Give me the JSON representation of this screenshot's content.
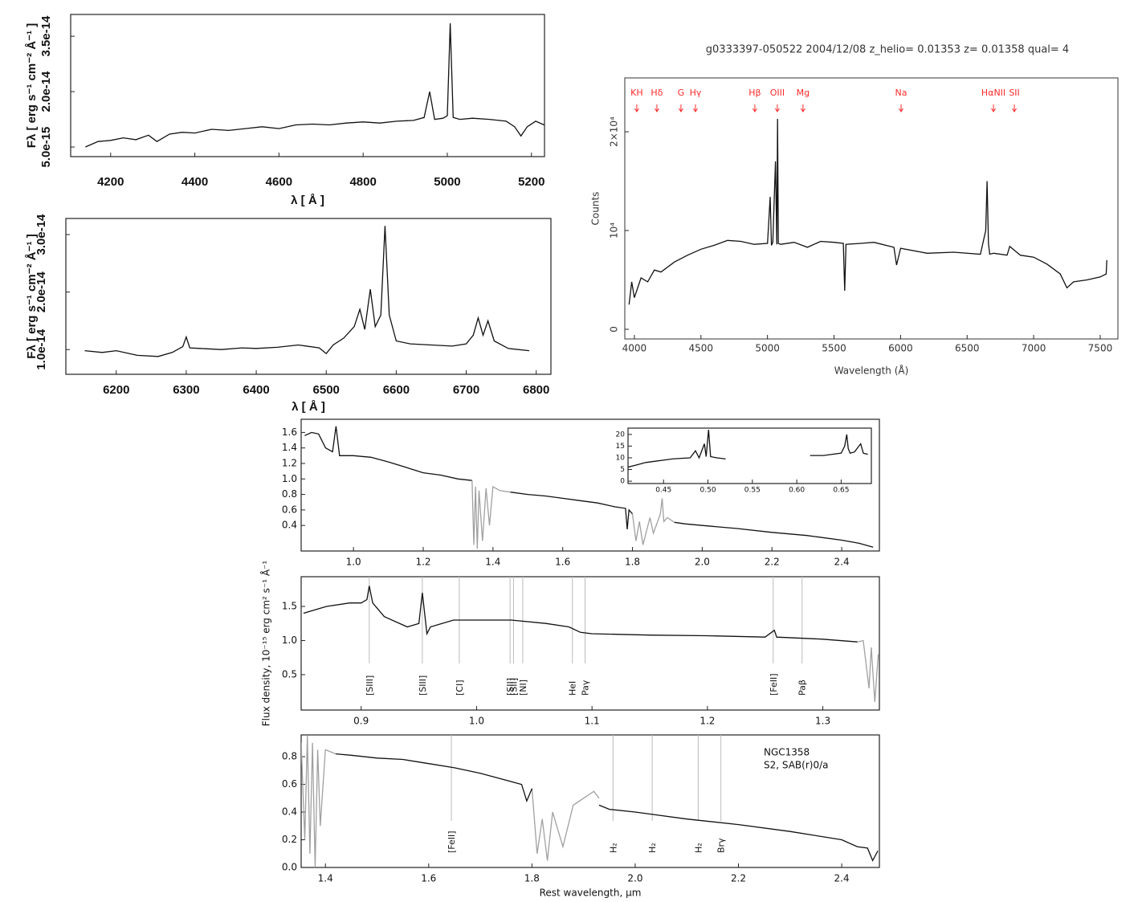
{
  "chart_data": [
    {
      "type": "line",
      "xlabel": "λ [ Å ]",
      "ylabel": "Fλ [ erg s⁻¹ cm⁻² Å⁻¹ ]",
      "xlim": [
        4105,
        5231
      ],
      "ylim": [
        2.4e-15,
        4.09e-14
      ],
      "xticks": [
        4200,
        4400,
        4600,
        4800,
        5000,
        5200
      ],
      "yticks": [
        {
          "value": 5e-15,
          "label": "5.0e-15"
        },
        {
          "value": 2e-14,
          "label": "2.0e-14"
        },
        {
          "value": 3.5e-14,
          "label": "3.5e-14"
        }
      ],
      "series": [
        {
          "color": "#111111",
          "x": [
            4140,
            4170,
            4200,
            4230,
            4260,
            4290,
            4310,
            4340,
            4370,
            4400,
            4440,
            4480,
            4520,
            4560,
            4600,
            4640,
            4680,
            4720,
            4760,
            4800,
            4840,
            4880,
            4920,
            4945,
            4958,
            4970,
            4990,
            5000,
            5007,
            5014,
            5030,
            5060,
            5100,
            5140,
            5160,
            5175,
            5190,
            5210,
            5230
          ],
          "values": [
            5e-15,
            6.5e-15,
            6.8e-15,
            7.5e-15,
            7e-15,
            8.2e-15,
            6.5e-15,
            8.5e-15,
            9e-15,
            8.8e-15,
            9.8e-15,
            9.5e-15,
            1e-14,
            1.05e-14,
            1e-14,
            1.1e-14,
            1.12e-14,
            1.1e-14,
            1.15e-14,
            1.18e-14,
            1.15e-14,
            1.2e-14,
            1.22e-14,
            1.3e-14,
            2e-14,
            1.25e-14,
            1.28e-14,
            1.35e-14,
            3.85e-14,
            1.3e-14,
            1.25e-14,
            1.28e-14,
            1.25e-14,
            1.2e-14,
            1.05e-14,
            8e-15,
            1.05e-14,
            1.2e-14,
            1.1e-14
          ]
        }
      ]
    },
    {
      "type": "line",
      "xlabel": "λ [ Å ]",
      "ylabel": "Fλ [ erg s⁻¹ cm⁻² Å⁻¹ ]",
      "xlim": [
        6128,
        6821
      ],
      "ylim": [
        5.7e-15,
        3.28e-14
      ],
      "xticks": [
        6200,
        6300,
        6400,
        6500,
        6600,
        6700,
        6800
      ],
      "yticks": [
        {
          "value": 1e-14,
          "label": "1.0e-14"
        },
        {
          "value": 2e-14,
          "label": "2.0e-14"
        },
        {
          "value": 3e-14,
          "label": "3.0e-14"
        }
      ],
      "series": [
        {
          "color": "#111111",
          "x": [
            6155,
            6180,
            6200,
            6230,
            6260,
            6280,
            6295,
            6300,
            6305,
            6320,
            6350,
            6380,
            6400,
            6430,
            6460,
            6490,
            6500,
            6510,
            6525,
            6540,
            6548,
            6555,
            6563,
            6570,
            6578,
            6584,
            6590,
            6600,
            6620,
            6650,
            6680,
            6700,
            6710,
            6717,
            6724,
            6731,
            6740,
            6760,
            6790
          ],
          "values": [
            9.8e-15,
            9.5e-15,
            9.8e-15,
            9e-15,
            8.8e-15,
            9.5e-15,
            1.05e-14,
            1.22e-14,
            1.03e-14,
            1.02e-14,
            1e-14,
            1.03e-14,
            1.02e-14,
            1.04e-14,
            1.08e-14,
            1.03e-14,
            9.3e-15,
            1.08e-14,
            1.2e-14,
            1.4e-14,
            1.7e-14,
            1.35e-14,
            2.05e-14,
            1.4e-14,
            1.6e-14,
            3.15e-14,
            1.6e-14,
            1.15e-14,
            1.1e-14,
            1.08e-14,
            1.06e-14,
            1.1e-14,
            1.25e-14,
            1.55e-14,
            1.25e-14,
            1.5e-14,
            1.15e-14,
            1.02e-14,
            9.8e-15
          ]
        }
      ]
    },
    {
      "type": "line",
      "title": "g0333397-050522 2004/12/08 z_helio= 0.01353 z= 0.01358 qual= 4",
      "xlabel": "Wavelength (Å)",
      "ylabel": "Counts",
      "xlim": [
        3928,
        7633
      ],
      "ylim": [
        -980,
        25450
      ],
      "xticks": [
        4000,
        4500,
        5000,
        5500,
        6000,
        6500,
        7000,
        7500
      ],
      "yticks": [
        0,
        {
          "value": 10000,
          "label": "10⁴"
        },
        {
          "value": 20000,
          "label": "2×10⁴"
        }
      ],
      "features": [
        {
          "label": "KH",
          "x": 4018
        },
        {
          "label": "Hδ",
          "x": 4169
        },
        {
          "label": "G",
          "x": 4350
        },
        {
          "label": "Hγ",
          "x": 4459
        },
        {
          "label": "Hβ",
          "x": 4905
        },
        {
          "label": "OIII",
          "x": 5074
        },
        {
          "label": "Mg",
          "x": 5267
        },
        {
          "label": "Na",
          "x": 6004
        },
        {
          "label": "HαNII",
          "x": 6698
        },
        {
          "label": "SII",
          "x": 6855
        }
      ],
      "feature_color": "#ff2a2a",
      "series": [
        {
          "color": "#111111",
          "x": [
            3960,
            3980,
            4000,
            4050,
            4100,
            4150,
            4200,
            4300,
            4400,
            4500,
            4600,
            4700,
            4800,
            4900,
            5000,
            5020,
            5030,
            5040,
            5060,
            5070,
            5076,
            5082,
            5100,
            5200,
            5300,
            5400,
            5500,
            5570,
            5580,
            5590,
            5700,
            5800,
            5950,
            5970,
            6000,
            6200,
            6400,
            6600,
            6640,
            6650,
            6660,
            6670,
            6700,
            6800,
            6820,
            6900,
            7000,
            7100,
            7200,
            7250,
            7300,
            7400,
            7500,
            7545,
            7550
          ],
          "values": [
            2500,
            4800,
            3200,
            5200,
            4800,
            6000,
            5800,
            6800,
            7500,
            8100,
            8500,
            9000,
            8900,
            8600,
            8700,
            13400,
            8500,
            8800,
            17000,
            8600,
            21300,
            8700,
            8600,
            8800,
            8300,
            8900,
            8800,
            8700,
            3900,
            8600,
            8700,
            8800,
            8300,
            6500,
            8200,
            7700,
            7800,
            7600,
            10000,
            15000,
            8700,
            7600,
            7700,
            7500,
            8400,
            7500,
            7300,
            6600,
            5600,
            4200,
            4800,
            5000,
            5300,
            5600,
            7000
          ]
        }
      ]
    },
    {
      "type": "line",
      "xlim": [
        0.85,
        2.508
      ],
      "ylim": [
        0.07,
        1.77
      ],
      "xticks": [
        {
          "value": 1,
          "label": "1.0"
        },
        1.2,
        1.4,
        1.6,
        1.8,
        {
          "value": 2,
          "label": "2.0"
        },
        2.2,
        2.4
      ],
      "yticks": [
        0.4,
        0.6,
        0.8,
        {
          "value": 1,
          "label": "1.0"
        },
        1.2,
        1.4,
        1.6
      ],
      "series": [
        {
          "color": "#111111",
          "x": [
            0.86,
            0.88,
            0.9,
            0.92,
            0.94,
            0.95,
            0.96,
            1.0,
            1.05,
            1.1,
            1.15,
            1.2,
            1.25,
            1.3,
            1.34,
            1.4,
            1.45,
            1.5,
            1.55,
            1.6,
            1.65,
            1.7,
            1.75,
            1.78,
            1.785,
            1.79,
            1.8,
            1.86,
            1.92,
            1.95,
            2.0,
            2.1,
            2.2,
            2.3,
            2.4,
            2.45,
            2.49
          ],
          "values": [
            1.56,
            1.6,
            1.58,
            1.4,
            1.35,
            1.68,
            1.3,
            1.3,
            1.28,
            1.22,
            1.15,
            1.08,
            1.05,
            1.0,
            0.98,
            null,
            0.83,
            0.8,
            0.78,
            0.75,
            0.72,
            0.69,
            0.64,
            0.62,
            0.35,
            0.6,
            0.55,
            null,
            0.44,
            0.42,
            0.4,
            0.36,
            0.31,
            0.27,
            0.21,
            0.17,
            0.12
          ]
        },
        {
          "color": "#a0a0a0",
          "x": [
            1.34,
            1.345,
            1.35,
            1.355,
            1.36,
            1.37,
            1.38,
            1.39,
            1.4,
            1.42,
            1.45,
            1.6,
            1.8,
            1.81,
            1.82,
            1.83,
            1.85,
            1.86,
            1.88,
            1.885,
            1.89,
            1.9,
            1.92
          ],
          "values": [
            0.98,
            0.15,
            0.9,
            0.1,
            0.85,
            0.2,
            0.88,
            0.4,
            0.9,
            0.85,
            0.83,
            null,
            0.55,
            0.2,
            0.45,
            0.15,
            0.5,
            0.3,
            0.55,
            0.75,
            0.45,
            0.5,
            0.44
          ]
        }
      ]
    },
    {
      "type": "line",
      "xlim": [
        0.41,
        0.684
      ],
      "ylim": [
        -1,
        22.7
      ],
      "xticks": [
        0.45,
        {
          "value": 0.5,
          "label": "0.50"
        },
        0.55,
        {
          "value": 0.6,
          "label": "0.60"
        },
        0.65
      ],
      "yticks": [
        0,
        5,
        10,
        15,
        20
      ],
      "series": [
        {
          "color": "#111111",
          "x": [
            0.41,
            0.42,
            0.43,
            0.44,
            0.45,
            0.46,
            0.47,
            0.48,
            0.486,
            0.49,
            0.496,
            0.498,
            0.5007,
            0.503,
            0.51,
            0.52,
            0.57,
            0.615,
            0.62,
            0.63,
            0.64,
            0.65,
            0.654,
            0.6563,
            0.658,
            0.66,
            0.665,
            0.672,
            0.675,
            0.68
          ],
          "values": [
            6,
            7,
            8,
            8.5,
            9,
            9.5,
            9.8,
            10,
            13,
            10,
            16,
            10.5,
            22,
            10.5,
            10,
            9.5,
            null,
            11,
            11,
            11,
            11.5,
            12,
            15,
            20,
            14,
            12,
            12.5,
            16,
            12,
            11.5
          ]
        }
      ]
    },
    {
      "type": "line",
      "ylabel": "Flux density, 10⁻¹⁵ erg cm² s⁻¹ Å⁻¹",
      "xlim": [
        0.848,
        1.349
      ],
      "ylim": [
        -0.018,
        1.935
      ],
      "xticks": [
        0.9,
        {
          "value": 1,
          "label": "1.0"
        },
        1.1,
        1.2,
        1.3
      ],
      "yticks": [
        0.5,
        {
          "value": 1,
          "label": "1.0"
        },
        1.5
      ],
      "lines": [
        {
          "label": "[SIII]",
          "x": 0.907
        },
        {
          "label": "[SIII]",
          "x": 0.953
        },
        {
          "label": "[CI]",
          "x": 0.985
        },
        {
          "label": "[SII]",
          "x": 1.029
        },
        {
          "label": "[SII]",
          "x": 1.032
        },
        {
          "label": "[NI]",
          "x": 1.04
        },
        {
          "label": "HeI",
          "x": 1.083
        },
        {
          "label": "Paγ",
          "x": 1.094
        },
        {
          "label": "[FeII]",
          "x": 1.257
        },
        {
          "label": "Paβ",
          "x": 1.282
        }
      ],
      "series": [
        {
          "color": "#111111",
          "x": [
            0.85,
            0.87,
            0.89,
            0.9,
            0.905,
            0.907,
            0.91,
            0.92,
            0.94,
            0.95,
            0.953,
            0.957,
            0.96,
            0.98,
            1.0,
            1.03,
            1.06,
            1.08,
            1.09,
            1.1,
            1.15,
            1.2,
            1.25,
            1.258,
            1.26,
            1.3,
            1.33
          ],
          "values": [
            1.4,
            1.5,
            1.55,
            1.55,
            1.6,
            1.8,
            1.55,
            1.35,
            1.2,
            1.25,
            1.7,
            1.1,
            1.2,
            1.3,
            1.3,
            1.3,
            1.25,
            1.2,
            1.12,
            1.1,
            1.08,
            1.07,
            1.05,
            1.15,
            1.05,
            1.02,
            0.98
          ]
        },
        {
          "color": "#a0a0a0",
          "x": [
            1.33,
            1.335,
            1.34,
            1.342,
            1.345,
            1.348
          ],
          "values": [
            0.98,
            1.0,
            0.3,
            0.9,
            0.1,
            0.8
          ]
        }
      ]
    },
    {
      "type": "line",
      "xlabel": "Rest wavelength, μm",
      "xlim": [
        1.353,
        2.473
      ],
      "ylim": [
        0,
        0.957
      ],
      "xticks": [
        1.4,
        1.6,
        1.8,
        {
          "value": 2,
          "label": "2.0"
        },
        2.2,
        2.4
      ],
      "yticks": [
        {
          "value": 0,
          "label": "0.0"
        },
        0.2,
        0.4,
        0.6,
        0.8
      ],
      "annotations": [
        "NGC1358",
        "S2,  SAB(r)0/a"
      ],
      "lines": [
        {
          "label": "[FeII]",
          "x": 1.644
        },
        {
          "label": "H₂",
          "x": 1.957
        },
        {
          "label": "H₂",
          "x": 2.033
        },
        {
          "label": "H₂",
          "x": 2.122
        },
        {
          "label": "Brγ",
          "x": 2.166
        }
      ],
      "series": [
        {
          "color": "#a0a0a0",
          "x": [
            1.353,
            1.36,
            1.365,
            1.37,
            1.375,
            1.38,
            1.385,
            1.39,
            1.4,
            1.42,
            1.6,
            1.8,
            1.81,
            1.82,
            1.83,
            1.84,
            1.86,
            1.88,
            1.9,
            1.92,
            1.93
          ],
          "values": [
            0.9,
            0.2,
            0.95,
            0.1,
            0.9,
            0,
            0.85,
            0.3,
            0.85,
            0.82,
            null,
            0.57,
            0.1,
            0.35,
            0.05,
            0.4,
            0.15,
            0.45,
            0.5,
            0.55,
            0.5
          ]
        },
        {
          "color": "#111111",
          "x": [
            1.42,
            1.45,
            1.5,
            1.55,
            1.6,
            1.65,
            1.7,
            1.75,
            1.78,
            1.79,
            1.8,
            1.86,
            1.93,
            1.95,
            2.0,
            2.1,
            2.2,
            2.3,
            2.4,
            2.43,
            2.45,
            2.46,
            2.47
          ],
          "values": [
            0.82,
            0.81,
            0.79,
            0.78,
            0.75,
            0.72,
            0.68,
            0.63,
            0.6,
            0.48,
            0.57,
            null,
            0.45,
            0.42,
            0.4,
            0.35,
            0.31,
            0.26,
            0.2,
            0.15,
            0.14,
            0.05,
            0.12
          ]
        }
      ]
    }
  ]
}
